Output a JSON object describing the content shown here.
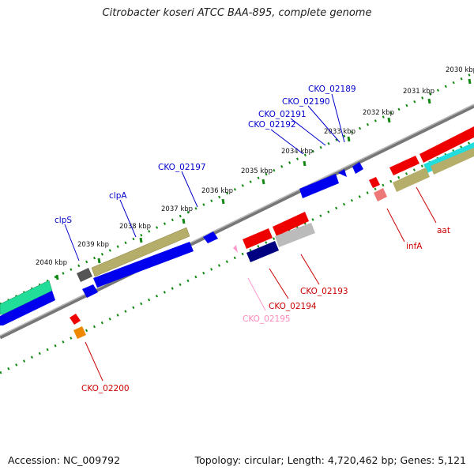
{
  "title": "Citrobacter koseri ATCC BAA-895, complete genome",
  "footer": {
    "accession": "Accession: NC_009792",
    "summary": "Topology: circular; Length: 4,720,462 bp; Genes: 5,121"
  },
  "ticks": [
    {
      "label": "2030 kbp"
    },
    {
      "label": "2031 kbp"
    },
    {
      "label": "2032 kbp"
    },
    {
      "label": "2033 kbp"
    },
    {
      "label": "2034 kbp"
    },
    {
      "label": "2035 kbp"
    },
    {
      "label": "2036 kbp"
    },
    {
      "label": "2037 kbp"
    },
    {
      "label": "2038 kbp"
    },
    {
      "label": "2039 kbp"
    },
    {
      "label": "2040 kbp"
    }
  ],
  "gene_labels": [
    {
      "text": "CKO_02189",
      "color": "#0000cc"
    },
    {
      "text": "CKO_02190",
      "color": "#0000cc"
    },
    {
      "text": "CKO_02191",
      "color": "#0000cc"
    },
    {
      "text": "CKO_02192",
      "color": "#0000cc"
    },
    {
      "text": "CKO_02197",
      "color": "#0000cc"
    },
    {
      "text": "clpA",
      "color": "#0000cc"
    },
    {
      "text": "clpS",
      "color": "#0000cc"
    },
    {
      "text": "aat",
      "color": "#cc0000"
    },
    {
      "text": "infA",
      "color": "#cc0000"
    },
    {
      "text": "CKO_02193",
      "color": "#cc0000"
    },
    {
      "text": "CKO_02194",
      "color": "#cc0000"
    },
    {
      "text": "CKO_02195",
      "color": "#ff88bb"
    },
    {
      "text": "CKO_02200",
      "color": "#cc0000"
    }
  ],
  "colors": {
    "backbone": "#808080",
    "tick_dots": "#118811",
    "blue": "#0000ee",
    "navy": "#000080",
    "red": "#ee0000",
    "olive": "#b5ad6a",
    "cyan": "#22dddd",
    "green": "#22dd99",
    "grey": "#bbbbbb",
    "dark_grey": "#555555",
    "orange": "#ee8800",
    "pink": "#ff99cc",
    "salmon": "#ee7777"
  }
}
